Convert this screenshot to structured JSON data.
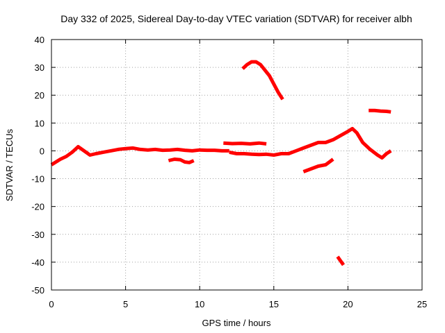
{
  "chart_data": {
    "type": "line",
    "title": "Day 332 of 2025, Sidereal Day-to-day VTEC variation (SDTVAR) for receiver albh",
    "xlabel": "GPS time / hours",
    "ylabel": "SDTVAR / TECUs",
    "xlim": [
      0,
      25
    ],
    "ylim": [
      -50,
      40
    ],
    "xticks": [
      0,
      5,
      10,
      15,
      20,
      25
    ],
    "yticks": [
      40,
      30,
      20,
      10,
      0,
      -10,
      -20,
      -30,
      -40,
      -50
    ],
    "grid": true,
    "color": "#ff0000",
    "series": [
      {
        "name": "seg-main-1",
        "x": [
          0.0,
          0.3,
          0.6,
          1.0,
          1.4,
          1.8,
          2.2,
          2.6,
          3.0,
          3.5,
          4.0,
          4.5,
          5.0,
          5.5,
          6.0,
          6.5,
          7.0,
          7.5,
          8.0,
          8.5,
          9.0,
          9.5,
          10.0,
          10.5,
          11.0,
          11.5,
          12.0
        ],
        "y": [
          -5,
          -4,
          -3,
          -2,
          -0.5,
          1.5,
          0,
          -1.5,
          -1,
          -0.5,
          0,
          0.5,
          0.8,
          1,
          0.5,
          0.3,
          0.5,
          0.2,
          0.3,
          0.5,
          0.2,
          0,
          0.3,
          0.2,
          0.2,
          0,
          0
        ]
      },
      {
        "name": "seg-main-2",
        "x": [
          12.0,
          12.5,
          13.0,
          13.5,
          14.0,
          14.5,
          15.0,
          15.5,
          16.0,
          16.5,
          17.0,
          17.5,
          18.0,
          18.5,
          19.0,
          19.5,
          20.0,
          20.3,
          20.6,
          21.0,
          21.5,
          22.0,
          22.3,
          22.6,
          22.9
        ],
        "y": [
          -0.5,
          -1,
          -1,
          -1.2,
          -1.3,
          -1.2,
          -1.5,
          -1,
          -1,
          0,
          1,
          2,
          3,
          3,
          4,
          5.5,
          7,
          8,
          6.5,
          3,
          0.5,
          -1.5,
          -2.5,
          -1,
          0
        ]
      },
      {
        "name": "seg-dip-8h",
        "x": [
          7.9,
          8.3,
          8.7,
          9.0,
          9.3,
          9.6
        ],
        "y": [
          -3.5,
          -3,
          -3.2,
          -4,
          -4.2,
          -3.5
        ]
      },
      {
        "name": "seg-plateau-3",
        "x": [
          11.6,
          12.2,
          12.8,
          13.4,
          14.0,
          14.5
        ],
        "y": [
          2.8,
          2.6,
          2.7,
          2.5,
          2.8,
          2.5
        ]
      },
      {
        "name": "seg-arc-32",
        "x": [
          12.9,
          13.2,
          13.5,
          13.8,
          14.1,
          14.4,
          14.7,
          15.0,
          15.3,
          15.6
        ],
        "y": [
          29.5,
          31,
          32,
          32,
          31,
          29,
          27,
          24,
          21,
          18.5
        ]
      },
      {
        "name": "seg-negative-rise",
        "x": [
          17.0,
          17.5,
          18.0,
          18.5,
          19.0
        ],
        "y": [
          -7.5,
          -6.5,
          -5.5,
          -5,
          -3
        ]
      },
      {
        "name": "seg-drop-40",
        "x": [
          19.3,
          19.5,
          19.7
        ],
        "y": [
          -38,
          -39.5,
          -41
        ]
      },
      {
        "name": "seg-plateau-14",
        "x": [
          21.4,
          21.8,
          22.2,
          22.6,
          22.9
        ],
        "y": [
          14.5,
          14.5,
          14.3,
          14.2,
          14
        ]
      }
    ]
  }
}
